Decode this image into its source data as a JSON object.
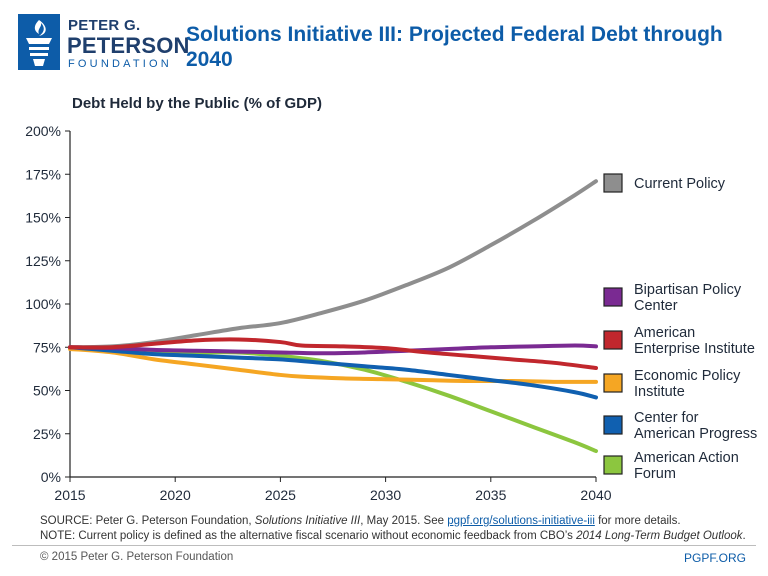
{
  "logo": {
    "line1": "PETER G.",
    "line2": "PETERSON",
    "line3": "FOUNDATION"
  },
  "chart_data": {
    "type": "line",
    "title": "Solutions Initiative III: Projected Federal Debt through 2040",
    "ylabel": "Debt Held by the Public (% of GDP)",
    "xlabel": "",
    "xlim": [
      2015,
      2040
    ],
    "ylim": [
      0,
      200
    ],
    "xticks": [
      2015,
      2020,
      2025,
      2030,
      2035,
      2040
    ],
    "xtick_labels": [
      "2015",
      "2020",
      "2025",
      "2030",
      "2035",
      "2040"
    ],
    "yticks": [
      0,
      25,
      50,
      75,
      100,
      125,
      150,
      175,
      200
    ],
    "ytick_labels": [
      "0%",
      "25%",
      "50%",
      "75%",
      "100%",
      "125%",
      "150%",
      "175%",
      "200%"
    ],
    "grid": false,
    "legend": "right",
    "series": [
      {
        "name": "Current Policy",
        "legend_lines": [
          "Current Policy"
        ],
        "color": "#8e8e8e",
        "x": [
          2015,
          2017,
          2019,
          2021,
          2023,
          2025,
          2027,
          2029,
          2031,
          2033,
          2035,
          2037,
          2039,
          2040
        ],
        "values": [
          75,
          75.5,
          78,
          82,
          86,
          89,
          95,
          102,
          111,
          121,
          134,
          148,
          163,
          171
        ]
      },
      {
        "name": "Bipartisan Policy Center",
        "legend_lines": [
          "Bipartisan Policy",
          "Center"
        ],
        "color": "#7a2a92",
        "x": [
          2015,
          2017,
          2019,
          2021,
          2023,
          2025,
          2027,
          2029,
          2031,
          2033,
          2035,
          2037,
          2039,
          2040
        ],
        "values": [
          75,
          74.5,
          73.5,
          73,
          72.5,
          72,
          71.5,
          72,
          73,
          74,
          75,
          75.5,
          76,
          75.5
        ]
      },
      {
        "name": "American Enterprise Institute",
        "legend_lines": [
          "American",
          "Enterprise Institute"
        ],
        "color": "#c1272d",
        "x": [
          2015,
          2017,
          2019,
          2021,
          2023,
          2025,
          2026,
          2028,
          2030,
          2032,
          2034,
          2036,
          2038,
          2040
        ],
        "values": [
          75,
          75,
          77,
          79,
          79.5,
          78,
          76,
          75.5,
          74.5,
          72,
          70,
          68,
          66,
          63
        ]
      },
      {
        "name": "Economic Policy Institute",
        "legend_lines": [
          "Economic Policy",
          "Institute"
        ],
        "color": "#f5a623",
        "x": [
          2015,
          2017,
          2019,
          2021,
          2023,
          2025,
          2026,
          2028,
          2030,
          2032,
          2034,
          2036,
          2038,
          2040
        ],
        "values": [
          74,
          72,
          68,
          65,
          62,
          59,
          58,
          57,
          56.5,
          56,
          55.5,
          55.5,
          55,
          55
        ]
      },
      {
        "name": "Center for American Progress",
        "legend_lines": [
          "Center for",
          "American Progress"
        ],
        "color": "#1060b0",
        "x": [
          2015,
          2017,
          2019,
          2021,
          2023,
          2025,
          2027,
          2029,
          2031,
          2033,
          2035,
          2037,
          2039,
          2040
        ],
        "values": [
          75,
          73,
          71,
          70,
          69,
          68,
          66,
          64,
          62,
          59,
          56,
          53,
          49,
          46
        ]
      },
      {
        "name": "American Action Forum",
        "legend_lines": [
          "American Action",
          "Forum"
        ],
        "color": "#8cc63f",
        "x": [
          2015,
          2017,
          2019,
          2021,
          2023,
          2025,
          2027,
          2029,
          2031,
          2033,
          2035,
          2037,
          2039,
          2040
        ],
        "values": [
          75,
          74,
          73,
          72,
          72,
          70,
          67,
          62,
          55,
          47,
          38,
          29,
          20,
          15
        ]
      }
    ]
  },
  "footer": {
    "source_prefix": "SOURCE: Peter G. Peterson Foundation, ",
    "source_italic": "Solutions Initiative III",
    "source_mid": ", May 2015. See ",
    "source_link": "pgpf.org/solutions-initiative-iii",
    "source_suffix": " for more details.",
    "note_prefix": "NOTE: Current policy is defined as the alternative fiscal scenario without economic feedback from CBO’s ",
    "note_italic": "2014 Long-Term Budget Outlook",
    "note_suffix": ".",
    "copyright": "© 2015 Peter G. Peterson Foundation",
    "site": "PGPF.ORG"
  },
  "colors": {
    "brand": "#0d5ca8",
    "axis": "#222222"
  }
}
